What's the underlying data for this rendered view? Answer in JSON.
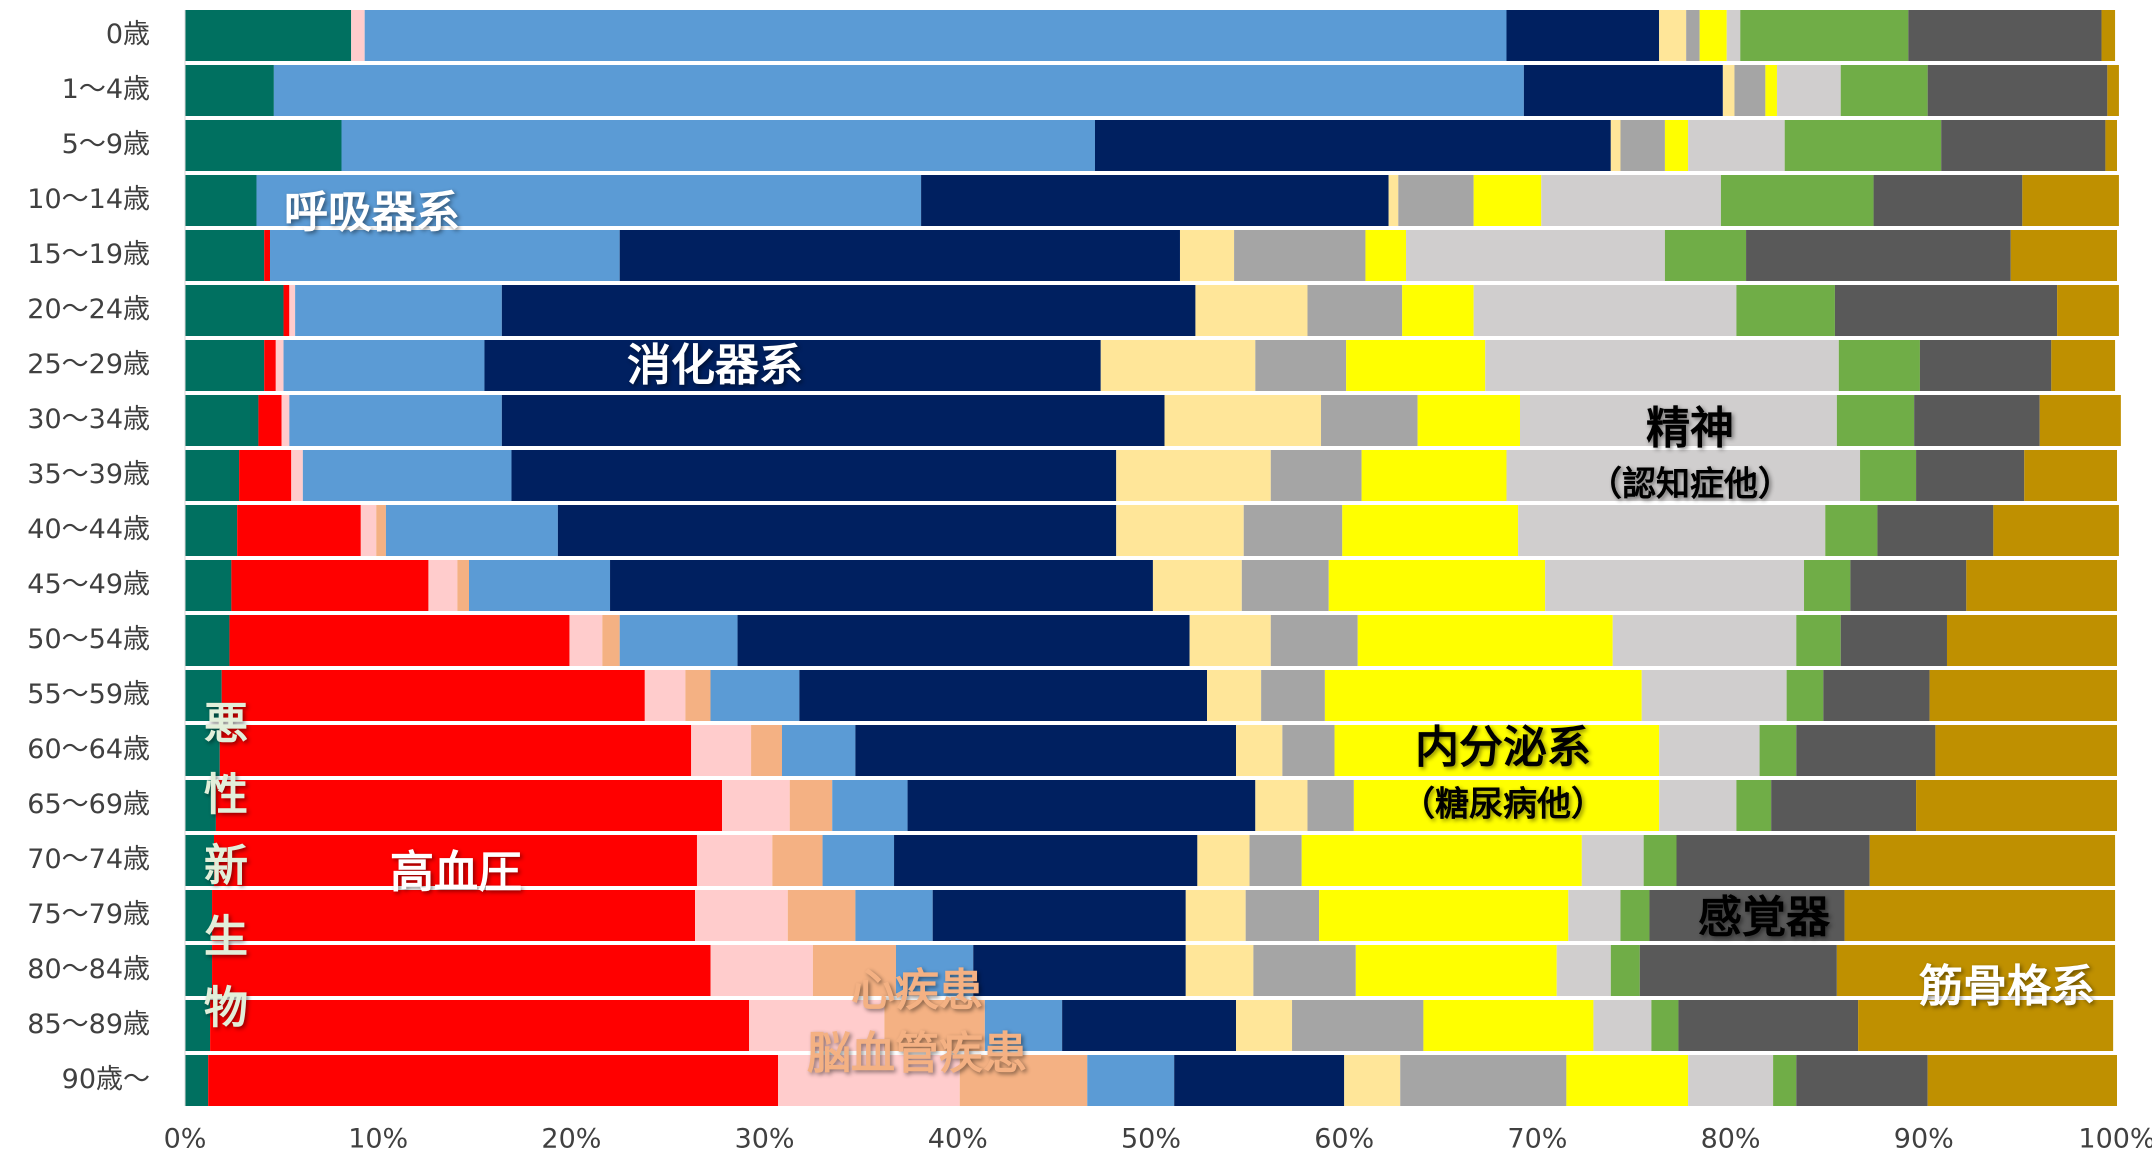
{
  "chart_data": {
    "type": "stacked_barh",
    "categories": [
      "0歳",
      "1〜4歳",
      "5〜9歳",
      "10〜14歳",
      "15〜19歳",
      "20〜24歳",
      "25〜29歳",
      "30〜34歳",
      "35〜39歳",
      "40〜44歳",
      "45〜49歳",
      "50〜54歳",
      "55〜59歳",
      "60〜64歳",
      "65〜69歳",
      "70〜74歳",
      "75〜79歳",
      "80〜84歳",
      "85〜89歳",
      "90歳〜"
    ],
    "series": [
      {
        "name": "悪性新生物",
        "color": "#007060",
        "values": [
          8.6,
          4.6,
          8.1,
          3.7,
          4.1,
          5.1,
          4.1,
          3.8,
          2.8,
          2.7,
          2.4,
          2.3,
          1.9,
          1.8,
          1.6,
          1.5,
          1.4,
          1.4,
          1.3,
          1.2
        ]
      },
      {
        "name": "高血圧",
        "color": "#ff0000",
        "values": [
          0,
          0,
          0,
          0,
          0.3,
          0.3,
          0.6,
          1.2,
          2.7,
          6.4,
          10.2,
          17.6,
          21.9,
          24.4,
          26.2,
          25.0,
          25.0,
          25.8,
          27.9,
          29.5
        ]
      },
      {
        "name": "心疾患",
        "color": "#ffcccc",
        "values": [
          0.7,
          0,
          0,
          0,
          0,
          0.3,
          0.4,
          0.4,
          0.6,
          0.8,
          1.5,
          1.7,
          2.1,
          3.1,
          3.5,
          3.9,
          4.8,
          5.3,
          7.0,
          9.4
        ]
      },
      {
        "name": "脳血管疾患",
        "color": "#f4b183",
        "values": [
          0,
          0,
          0,
          0,
          0,
          0,
          0,
          0,
          0,
          0.5,
          0.6,
          0.9,
          1.3,
          1.6,
          2.2,
          2.6,
          3.5,
          4.3,
          5.2,
          6.6
        ]
      },
      {
        "name": "呼吸器系",
        "color": "#5b9bd5",
        "values": [
          59.1,
          64.7,
          39.0,
          34.4,
          18.1,
          10.7,
          10.4,
          11.0,
          10.8,
          8.9,
          7.3,
          6.1,
          4.6,
          3.8,
          3.9,
          3.7,
          4.0,
          4.0,
          4.0,
          4.5
        ]
      },
      {
        "name": "消化器系",
        "color": "#002060",
        "values": [
          7.9,
          10.3,
          26.7,
          24.2,
          29.0,
          35.9,
          31.9,
          34.3,
          31.3,
          28.9,
          28.1,
          23.4,
          21.1,
          19.7,
          18.0,
          15.7,
          13.1,
          11.0,
          9.0,
          8.8
        ]
      },
      {
        "color": "#ffe699",
        "values": [
          1.4,
          0.6,
          0.5,
          0.5,
          2.8,
          5.8,
          8.0,
          8.1,
          8.0,
          6.6,
          4.6,
          4.2,
          2.8,
          2.4,
          2.7,
          2.7,
          3.1,
          3.5,
          2.9,
          2.9
        ]
      },
      {
        "color": "#a5a5a5",
        "values": [
          0.7,
          1.6,
          2.3,
          3.9,
          6.8,
          4.9,
          4.7,
          5.0,
          4.7,
          5.1,
          4.5,
          4.5,
          3.3,
          2.7,
          2.4,
          2.7,
          3.8,
          5.3,
          6.8,
          8.6
        ]
      },
      {
        "name": "内分泌系",
        "sublabel": "（糖尿病他）",
        "color": "#ffff00",
        "values": [
          1.4,
          0.6,
          1.2,
          3.5,
          2.1,
          3.7,
          7.2,
          5.3,
          7.5,
          9.1,
          11.2,
          13.2,
          16.4,
          16.8,
          15.8,
          14.5,
          12.9,
          10.4,
          8.8,
          6.3
        ]
      },
      {
        "name": "精神",
        "sublabel": "（認知症他）",
        "color": "#d0cece",
        "values": [
          0.7,
          3.3,
          5.0,
          9.3,
          13.4,
          13.6,
          18.3,
          16.4,
          18.3,
          15.9,
          13.4,
          9.5,
          7.5,
          5.2,
          4.0,
          3.2,
          2.7,
          2.8,
          3.0,
          4.4
        ]
      },
      {
        "color": "#70ad47",
        "values": [
          8.7,
          4.5,
          8.1,
          7.9,
          4.2,
          5.1,
          4.2,
          4.0,
          2.9,
          2.7,
          2.4,
          2.3,
          1.9,
          1.9,
          1.8,
          1.7,
          1.5,
          1.5,
          1.4,
          1.2
        ]
      },
      {
        "name": "感覚器",
        "color": "#595959",
        "values": [
          10.0,
          9.3,
          8.5,
          7.7,
          13.7,
          11.5,
          6.8,
          6.5,
          5.6,
          6.0,
          6.0,
          5.5,
          5.5,
          7.2,
          7.5,
          10.0,
          10.1,
          10.2,
          9.3,
          6.8
        ]
      },
      {
        "name": "筋骨格系",
        "color": "#bf9000",
        "values": [
          0.7,
          0.6,
          0.6,
          5.0,
          5.5,
          3.2,
          3.3,
          4.2,
          4.8,
          6.5,
          7.8,
          8.8,
          9.7,
          9.4,
          10.4,
          12.7,
          14.0,
          14.4,
          13.2,
          9.8
        ]
      }
    ],
    "xlim": [
      0,
      100
    ],
    "xticks": [
      {
        "value": 0,
        "label": "0%"
      },
      {
        "value": 10,
        "label": "10%"
      },
      {
        "value": 20,
        "label": "20%"
      },
      {
        "value": 30,
        "label": "30%"
      },
      {
        "value": 40,
        "label": "40%"
      },
      {
        "value": 50,
        "label": "50%"
      },
      {
        "value": 60,
        "label": "60%"
      },
      {
        "value": 70,
        "label": "70%"
      },
      {
        "value": 80,
        "label": "80%"
      },
      {
        "value": 90,
        "label": "90%"
      },
      {
        "value": 100,
        "label": "100%"
      }
    ]
  }
}
